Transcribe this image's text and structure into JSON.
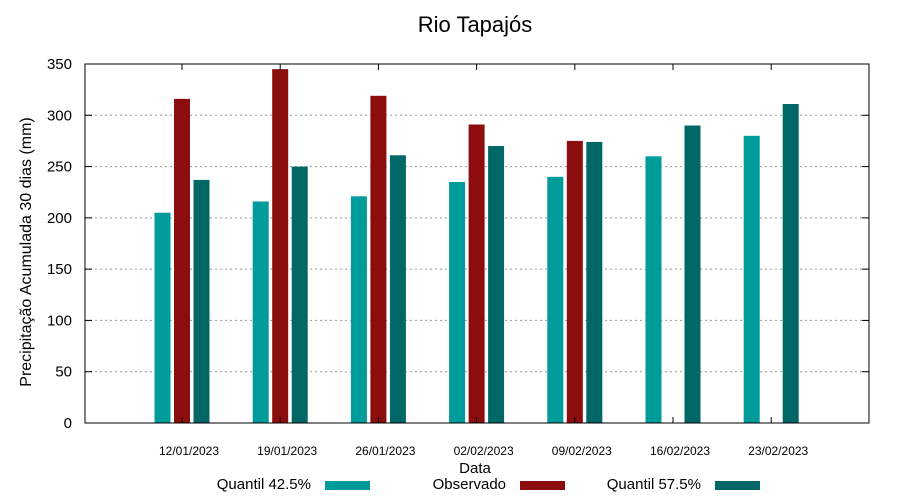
{
  "chart_data": {
    "type": "bar",
    "title": "Rio Tapajós",
    "xlabel": "Data",
    "ylabel": "Precipitação Acumulada 30 dias (mm)",
    "ylim": [
      0,
      350
    ],
    "yticks": [
      0,
      50,
      100,
      150,
      200,
      250,
      300,
      350
    ],
    "grid": true,
    "legend_position": "bottom",
    "categories": [
      "12/01/2023",
      "19/01/2023",
      "26/01/2023",
      "02/02/2023",
      "09/02/2023",
      "16/02/2023",
      "23/02/2023"
    ],
    "series": [
      {
        "name": "Quantil 42.5%",
        "color": "#009b9b",
        "values": [
          205,
          216,
          221,
          235,
          240,
          260,
          280
        ]
      },
      {
        "name": "Observado",
        "color": "#8b0d0d",
        "values": [
          316,
          345,
          319,
          291,
          275,
          null,
          null
        ]
      },
      {
        "name": "Quantil 57.5%",
        "color": "#006666",
        "values": [
          237,
          250,
          261,
          270,
          274,
          290,
          311
        ]
      }
    ]
  }
}
